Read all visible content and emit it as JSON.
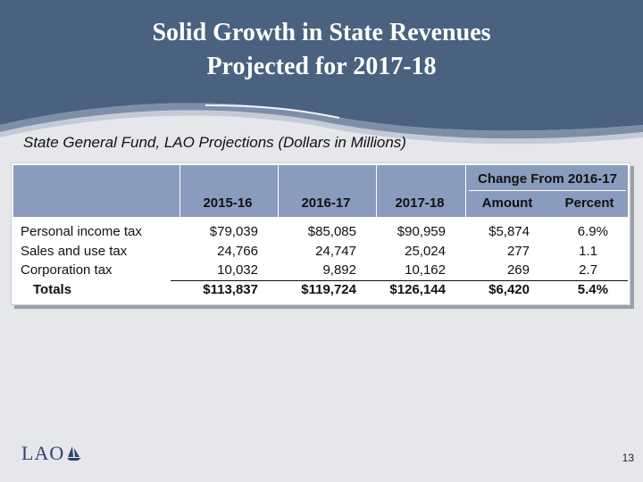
{
  "slide": {
    "title_line1": "Solid Growth in State Revenues",
    "title_line2": "Projected for 2017-18",
    "subtitle": "State General Fund, LAO Projections (Dollars in Millions)",
    "page_number": "13",
    "logo_text": "LAO",
    "colors": {
      "header_band": "#4a6180",
      "table_header": "#8a9cbd",
      "logo": "#2d4468"
    }
  },
  "table": {
    "group_header": "Change From 2016-17",
    "columns": [
      "2015-16",
      "2016-17",
      "2017-18",
      "Amount",
      "Percent"
    ],
    "rows": [
      {
        "label": "Personal income tax",
        "values": [
          "$79,039",
          "$85,085",
          "$90,959",
          "$5,874",
          "6.9%"
        ]
      },
      {
        "label": "Sales and use tax",
        "values": [
          "24,766",
          "24,747",
          "25,024",
          "277",
          "1.1"
        ]
      },
      {
        "label": "Corporation tax",
        "values": [
          "10,032",
          "9,892",
          "10,162",
          "269",
          "2.7"
        ]
      }
    ],
    "totals": {
      "label": "Totals",
      "values": [
        "$113,837",
        "$119,724",
        "$126,144",
        "$6,420",
        "5.4%"
      ]
    }
  }
}
